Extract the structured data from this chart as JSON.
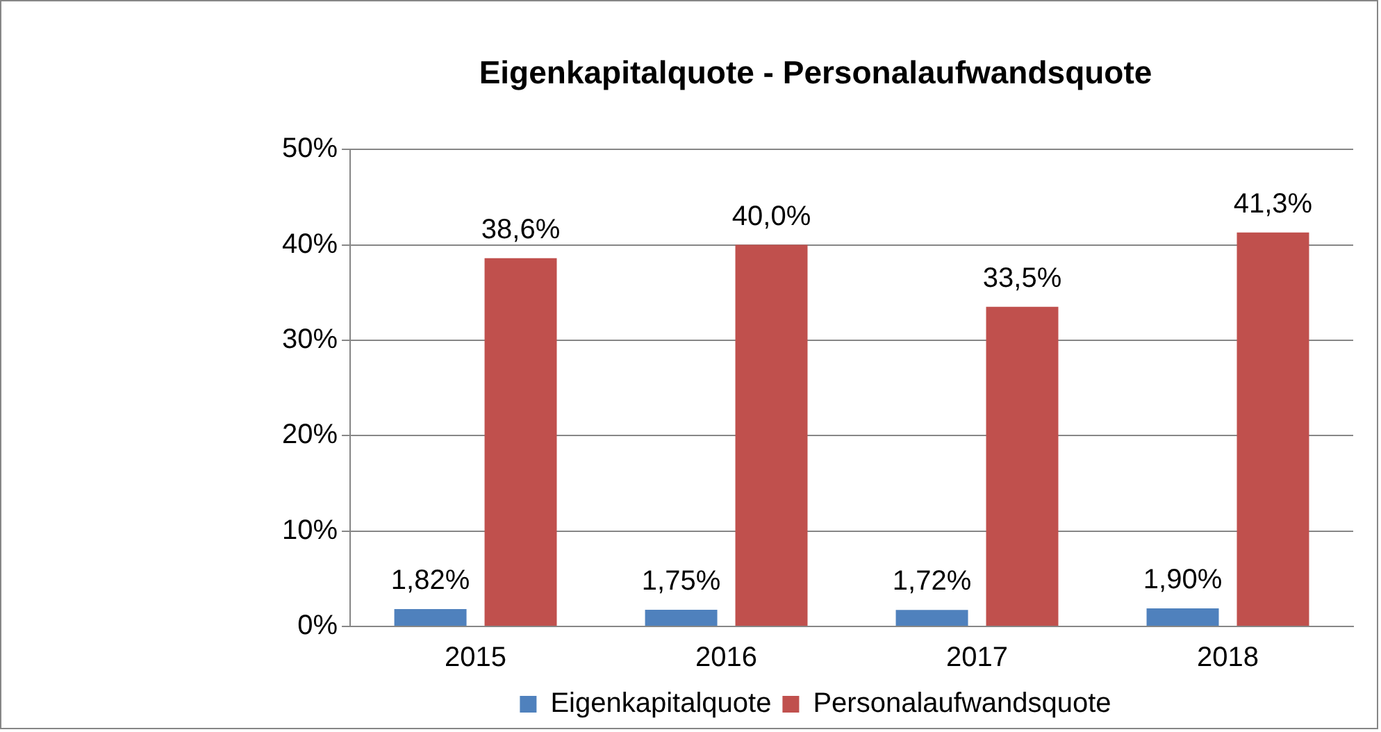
{
  "chart_data": {
    "type": "bar",
    "title": "Eigenkapitalquote - Personalaufwandsquote",
    "categories": [
      "2015",
      "2016",
      "2017",
      "2018"
    ],
    "series": [
      {
        "name": "Eigenkapitalquote",
        "color": "#4f81bd",
        "values": [
          1.82,
          1.75,
          1.72,
          1.9
        ],
        "value_labels": [
          "1,82%",
          "1,75%",
          "1,72%",
          "1,90%"
        ]
      },
      {
        "name": "Personalaufwandsquote",
        "color": "#c0504d",
        "values": [
          38.6,
          40.0,
          33.5,
          41.3
        ],
        "value_labels": [
          "38,6%",
          "40,0%",
          "33,5%",
          "41,3%"
        ]
      }
    ],
    "ylim": [
      0,
      50
    ],
    "yticks": [
      {
        "value": 0,
        "label": "0%"
      },
      {
        "value": 10,
        "label": "10%"
      },
      {
        "value": 20,
        "label": "20%"
      },
      {
        "value": 30,
        "label": "30%"
      },
      {
        "value": 40,
        "label": "40%"
      },
      {
        "value": 50,
        "label": "50%"
      }
    ],
    "grid": "y",
    "legend": "bottom"
  }
}
